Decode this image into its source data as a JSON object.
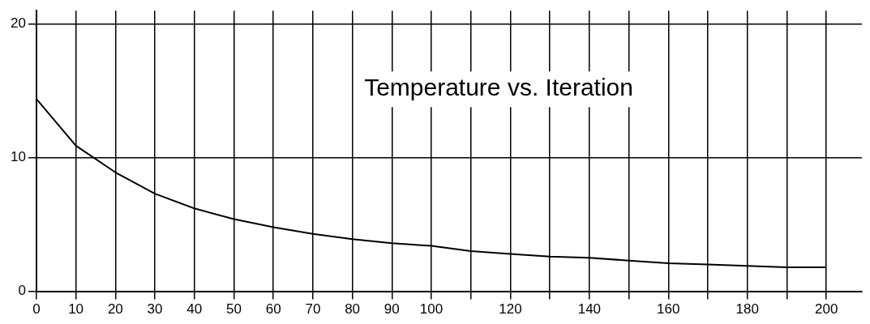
{
  "chart_data": {
    "type": "line",
    "title": "Temperature vs. Iteration",
    "x": [
      0,
      10,
      20,
      30,
      40,
      50,
      60,
      70,
      80,
      90,
      100,
      110,
      120,
      130,
      140,
      150,
      160,
      170,
      180,
      190,
      200
    ],
    "series": [
      {
        "color": "#000000",
        "values": [
          14.4,
          10.9,
          8.9,
          7.3,
          6.2,
          5.4,
          4.8,
          4.3,
          3.9,
          3.6,
          3.4,
          3.0,
          2.8,
          2.6,
          2.5,
          2.3,
          2.1,
          2.0,
          1.9,
          1.8,
          1.8
        ]
      }
    ],
    "xlim": [
      0,
      209
    ],
    "ylim": [
      0,
      21
    ],
    "xticks": [
      0,
      10,
      20,
      30,
      40,
      50,
      60,
      70,
      80,
      90,
      100,
      {
        "value": 110,
        "label": null
      },
      120,
      {
        "value": 130,
        "label": null
      },
      140,
      {
        "value": 150,
        "label": null
      },
      160,
      {
        "value": 170,
        "label": null
      },
      180,
      {
        "value": 190,
        "label": null
      },
      200
    ],
    "yticks": [
      0,
      10,
      20
    ],
    "grid": true,
    "legend": false,
    "marker": "none",
    "line_style": "solid"
  }
}
